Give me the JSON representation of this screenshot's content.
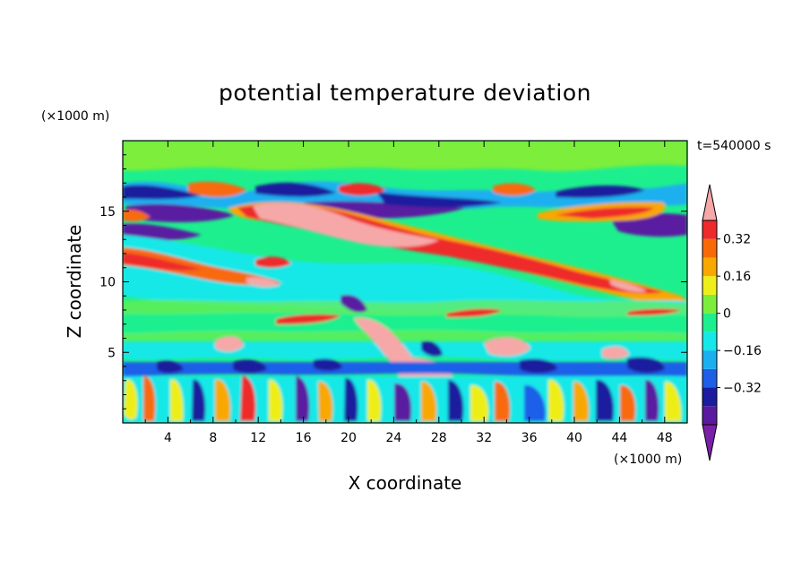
{
  "chart_data": {
    "type": "heatmap",
    "title": "potential temperature deviation",
    "xlabel": "X coordinate",
    "ylabel": "Z coordinate",
    "x_unit": "(×1000 m)",
    "y_unit": "(×1000 m)",
    "time_label": "t=540000 s",
    "xlim": [
      0,
      50
    ],
    "ylim": [
      0,
      20
    ],
    "x_ticks": [
      4,
      8,
      12,
      16,
      20,
      24,
      28,
      32,
      36,
      40,
      44,
      48
    ],
    "y_ticks": [
      5,
      10,
      15
    ],
    "colorbar": {
      "levels": [
        -0.48,
        -0.4,
        -0.32,
        -0.24,
        -0.16,
        -0.08,
        0,
        0.08,
        0.16,
        0.24,
        0.32,
        0.4
      ],
      "labeled_levels": [
        0.32,
        0.16,
        0,
        -0.16,
        -0.32
      ],
      "labels": [
        "0.32",
        "0.16",
        "0",
        "−0.16",
        "−0.32"
      ],
      "colors": [
        "#7a1fa8",
        "#5a1aa0",
        "#1c1c9e",
        "#1f5fe8",
        "#1ab0f0",
        "#15e8e8",
        "#1eef8e",
        "#7cee3a",
        "#eeee18",
        "#f8a800",
        "#f86a08",
        "#ee2a2a",
        "#f6a8a8"
      ]
    },
    "features": [
      {
        "type": "warm",
        "x": [
          12,
          30
        ],
        "z": [
          12.5,
          16
        ],
        "value": 0.45
      },
      {
        "type": "cold",
        "x": [
          16,
          33
        ],
        "z": [
          14.8,
          16.5
        ],
        "value": -0.35
      },
      {
        "type": "cold",
        "x": [
          0,
          6
        ],
        "z": [
          14,
          17
        ],
        "value": -0.35
      },
      {
        "type": "cold",
        "x": [
          38,
          50
        ],
        "z": [
          15,
          17
        ],
        "value": -0.35
      },
      {
        "type": "warm",
        "x": [
          0,
          12
        ],
        "z": [
          10,
          12.5
        ],
        "value": 0.3
      },
      {
        "type": "warm",
        "x": [
          28,
          48
        ],
        "z": [
          9.5,
          14
        ],
        "value": 0.3
      },
      {
        "type": "neutral-cool",
        "x": [
          0,
          50
        ],
        "z": [
          10,
          14
        ],
        "value": -0.08
      },
      {
        "type": "mixed",
        "x": [
          0,
          50
        ],
        "z": [
          0,
          4
        ],
        "value": 0
      }
    ]
  }
}
